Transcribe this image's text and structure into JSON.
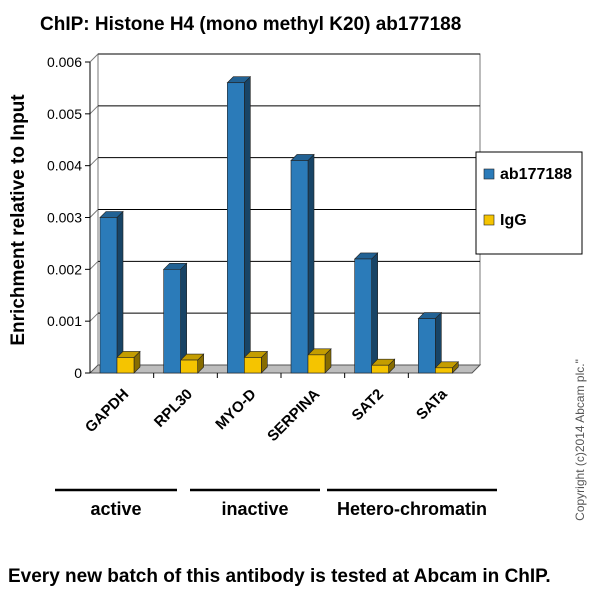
{
  "chart_data": {
    "type": "bar",
    "title": "ChIP: Histone H4 (mono methyl K20) ab177188",
    "ylabel": "Enrichment relative to Input",
    "xlabel": "",
    "ylim": [
      0,
      0.006
    ],
    "yticks": [
      "0",
      "0.001",
      "0.002",
      "0.003",
      "0.004",
      "0.005",
      "0.006"
    ],
    "categories": [
      "GAPDH",
      "RPL30",
      "MYO-D",
      "SERPINA",
      "SAT2",
      "SATa"
    ],
    "series": [
      {
        "name": "ab177188",
        "color": "#2b7bb9",
        "values": [
          0.003,
          0.002,
          0.0056,
          0.0041,
          0.0022,
          0.00105
        ]
      },
      {
        "name": "IgG",
        "color": "#f5c400",
        "values": [
          0.0003,
          0.00025,
          0.0003,
          0.00035,
          0.00015,
          0.0001
        ]
      }
    ],
    "grid": true,
    "legend_position": "right",
    "groups": [
      {
        "label": "active"
      },
      {
        "label": "inactive"
      },
      {
        "label": "Hetero-chromatin"
      }
    ]
  },
  "footer": "Every new batch of this antibody is tested at Abcam in ChIP.",
  "copyright": "Copyright (c)2014 Abcam plc.\""
}
